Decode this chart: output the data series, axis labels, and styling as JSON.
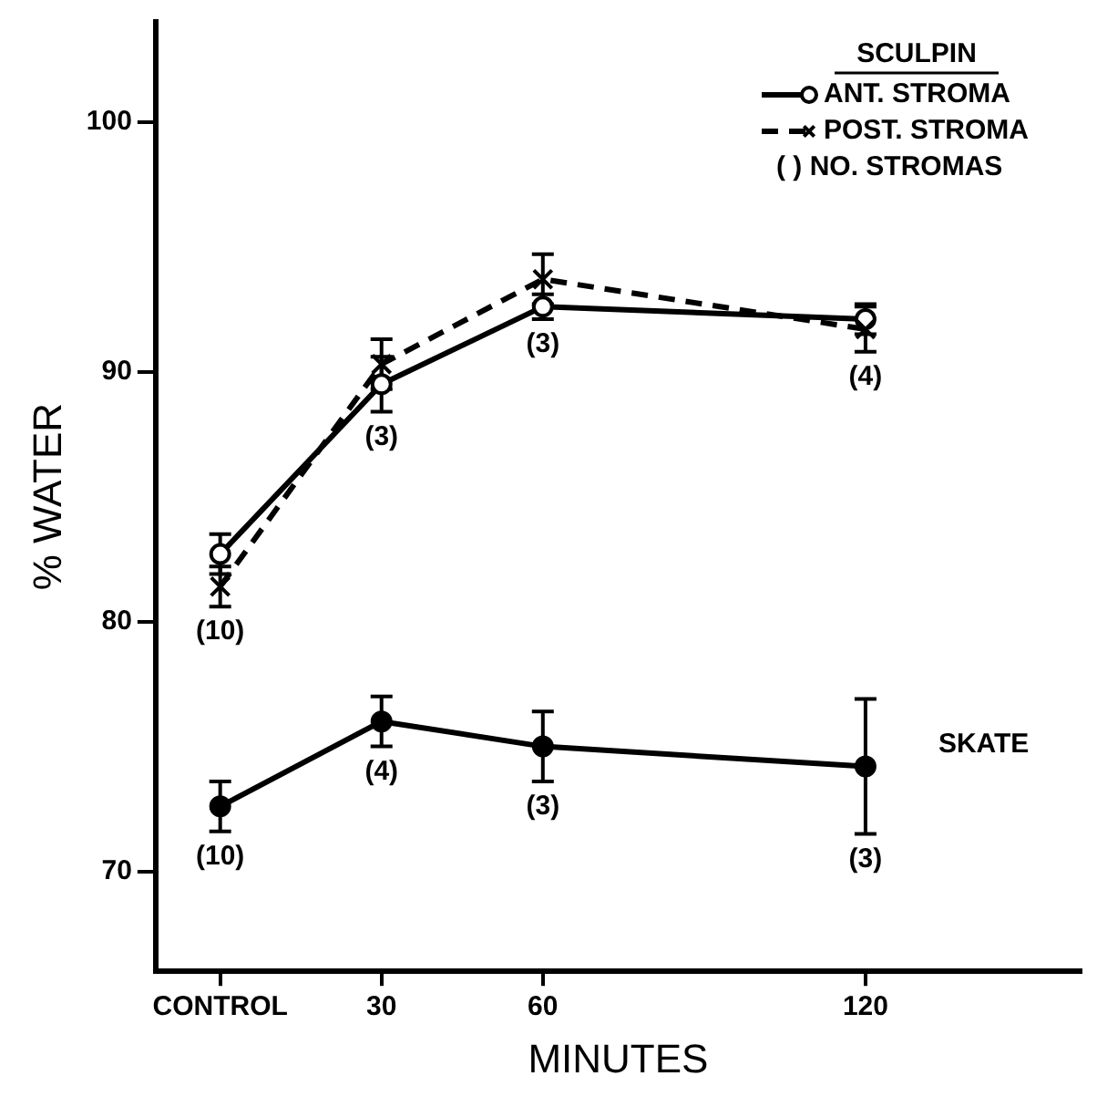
{
  "chart_data": {
    "type": "line",
    "xlabel": "MINUTES",
    "ylabel": "% WATER",
    "legend_title": "SCULPIN",
    "legend": "top right",
    "x": [
      0,
      30,
      60,
      120
    ],
    "xlim": [
      -12,
      160
    ],
    "xticks": [
      {
        "value": 0,
        "label": "CONTROL"
      },
      30,
      60,
      120
    ],
    "ylim": [
      66,
      104
    ],
    "yticks": [
      70,
      80,
      90,
      100
    ],
    "grid": false,
    "series": [
      {
        "name": "ANT. STROMA",
        "color": "#000000",
        "marker": "circle",
        "line_style": "solid",
        "values": [
          82.7,
          89.5,
          92.6,
          92.1
        ],
        "errors": [
          0.8,
          1.1,
          0.5,
          0.6
        ]
      },
      {
        "name": "POST. STROMA",
        "color": "#000000",
        "marker": "cross",
        "line_style": "dashed",
        "values": [
          81.4,
          90.3,
          93.7,
          91.7
        ],
        "errors": [
          0.8,
          1.0,
          1.0,
          0.9
        ]
      },
      {
        "name": "SKATE",
        "color": "#000000",
        "marker": "circle",
        "line_style": "solid",
        "values": [
          72.6,
          76.0,
          75.0,
          74.2
        ],
        "errors": [
          1.0,
          1.0,
          1.4,
          2.7
        ]
      }
    ],
    "annotations": [
      "( ) NO. STROMAS",
      {
        "text": "(10)",
        "x": 0,
        "y": 81.4
      },
      {
        "text": "(3)",
        "x": 30,
        "y": 89.5
      },
      {
        "text": "(3)",
        "x": 60,
        "y": 92.6
      },
      {
        "text": "(4)",
        "x": 120,
        "y": 91.7
      },
      {
        "text": "(10)",
        "x": 0,
        "y": 72.6
      },
      {
        "text": "(4)",
        "x": 30,
        "y": 76.0
      },
      {
        "text": "(3)",
        "x": 60,
        "y": 75.0
      },
      {
        "text": "(3)",
        "x": 120,
        "y": 74.2
      }
    ]
  }
}
